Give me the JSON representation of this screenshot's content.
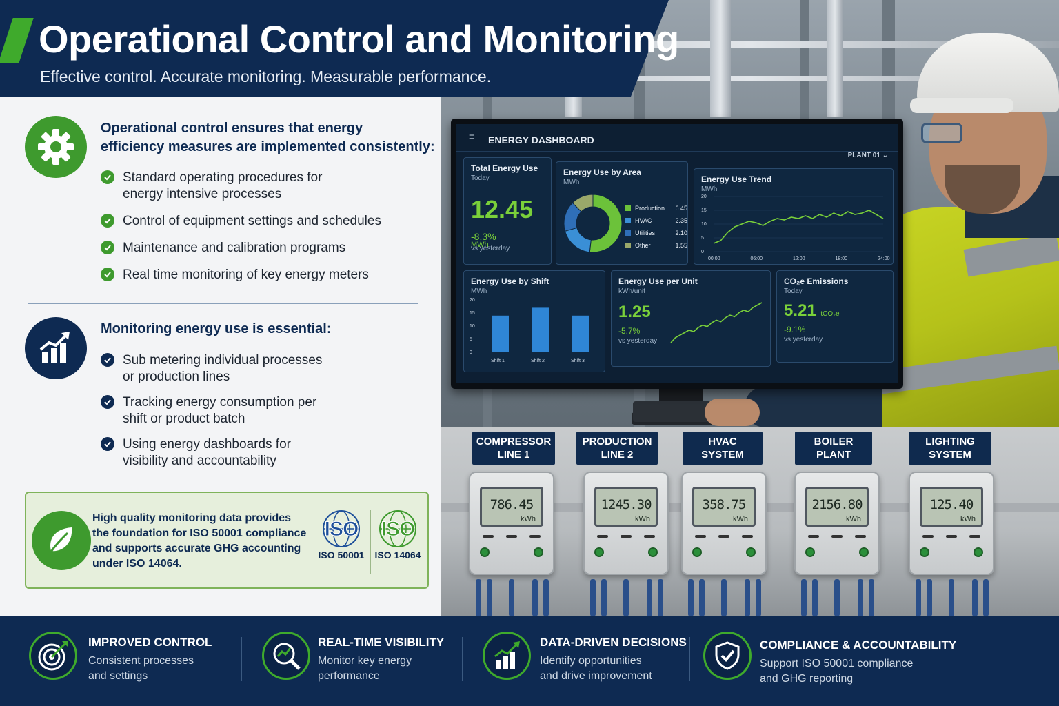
{
  "header": {
    "title": "Operational Control and Monitoring",
    "subtitle": "Effective control. Accurate monitoring. Measurable performance."
  },
  "operational": {
    "icon": "gear-icon",
    "heading_line1": "Operational control ensures that energy",
    "heading_line2": "efficiency measures are implemented consistently:",
    "bullets": [
      {
        "line1": "Standard operating procedures for",
        "line2": "energy intensive processes"
      },
      {
        "line1": "Control of equipment settings and schedules",
        "line2": ""
      },
      {
        "line1": "Maintenance and calibration programs",
        "line2": ""
      },
      {
        "line1": "Real time monitoring of key energy meters",
        "line2": ""
      }
    ]
  },
  "monitoring": {
    "icon": "growth-chart-icon",
    "heading": "Monitoring energy use is essential:",
    "bullets": [
      {
        "line1": "Sub metering individual processes",
        "line2": "or production lines"
      },
      {
        "line1": "Tracking energy consumption per",
        "line2": "shift or product batch"
      },
      {
        "line1": "Using energy dashboards for",
        "line2": "visibility and accountability"
      }
    ]
  },
  "iso_box": {
    "text_line1": "High quality monitoring data provides",
    "text_line2": "the foundation for ISO 50001 compliance",
    "text_line3": "and supports accurate GHG accounting",
    "text_line4": "under ISO 14064.",
    "badges": [
      {
        "word": "ISO",
        "caption": "ISO 50001",
        "color": "#1d4f9a"
      },
      {
        "word": "ISO",
        "caption": "ISO 14064",
        "color": "#3e9a2e"
      }
    ]
  },
  "dashboard": {
    "title": "ENERGY DASHBOARD",
    "menu_icon": "≡",
    "plant": "PLANT 01 ⌄",
    "total": {
      "title": "Total Energy Use",
      "sub": "Today",
      "value": "12.45",
      "unit": "MWh",
      "delta": "-8.3%",
      "vs": "vs yesterday"
    },
    "by_area": {
      "title": "Energy Use by Area",
      "sub": "MWh",
      "items": [
        {
          "name": "Production",
          "value": "6.45",
          "color": "#6cc23a"
        },
        {
          "name": "HVAC",
          "value": "2.35",
          "color": "#3a8fd6"
        },
        {
          "name": "Utilities",
          "value": "2.10",
          "color": "#2f6fb8"
        },
        {
          "name": "Other",
          "value": "1.55",
          "color": "#9aa86a"
        }
      ]
    },
    "trend": {
      "title": "Energy Use Trend",
      "sub": "MWh",
      "y_ticks": [
        "20",
        "15",
        "10",
        "5",
        "0"
      ],
      "x_ticks": [
        "00:00",
        "06:00",
        "12:00",
        "18:00",
        "24:00"
      ]
    },
    "by_shift": {
      "title": "Energy Use by Shift",
      "sub": "MWh",
      "y_ticks": [
        "20",
        "15",
        "10",
        "5",
        "0"
      ],
      "categories": [
        "Shift 1",
        "Shift 2",
        "Shift 3"
      ]
    },
    "per_unit": {
      "title": "Energy Use per Unit",
      "sub": "kWh/unit",
      "value": "1.25",
      "delta": "-5.7%",
      "vs": "vs yesterday"
    },
    "co2": {
      "title": "CO₂e Emissions",
      "sub": "Today",
      "value": "5.21",
      "unit": "tCO₂e",
      "delta": "-9.1%",
      "vs": "vs yesterday"
    }
  },
  "meters": [
    {
      "label_line1": "COMPRESSOR",
      "label_line2": "LINE 1",
      "reading": "786.45",
      "unit": "kWh"
    },
    {
      "label_line1": "PRODUCTION",
      "label_line2": "LINE 2",
      "reading": "1245.30",
      "unit": "kWh"
    },
    {
      "label_line1": "HVAC",
      "label_line2": "SYSTEM",
      "reading": "358.75",
      "unit": "kWh"
    },
    {
      "label_line1": "BOILER",
      "label_line2": "PLANT",
      "reading": "2156.80",
      "unit": "kWh"
    },
    {
      "label_line1": "LIGHTING",
      "label_line2": "SYSTEM",
      "reading": "125.40",
      "unit": "kWh"
    }
  ],
  "footer": [
    {
      "icon": "target-icon",
      "title": "IMPROVED CONTROL",
      "desc_line1": "Consistent processes",
      "desc_line2": "and settings"
    },
    {
      "icon": "magnifier-chart-icon",
      "title": "REAL-TIME VISIBILITY",
      "desc_line1": "Monitor key energy",
      "desc_line2": "performance"
    },
    {
      "icon": "bar-growth-icon",
      "title": "DATA-DRIVEN DECISIONS",
      "desc_line1": "Identify opportunities",
      "desc_line2": "and drive improvement"
    },
    {
      "icon": "shield-check-icon",
      "title": "COMPLIANCE & ACCOUNTABILITY",
      "desc_line1": "Support ISO 50001 compliance",
      "desc_line2": "and GHG reporting"
    }
  ],
  "colors": {
    "navy": "#0e2a52",
    "green": "#3faa2c",
    "lime": "#7ad03a"
  },
  "chart_data": [
    {
      "type": "pie",
      "title": "Energy Use by Area",
      "categories": [
        "Production",
        "HVAC",
        "Utilities",
        "Other"
      ],
      "values": [
        6.45,
        2.35,
        2.1,
        1.55
      ]
    },
    {
      "type": "line",
      "title": "Energy Use Trend",
      "ylabel": "MWh",
      "ylim": [
        0,
        20
      ],
      "x": [
        "00:00",
        "01:00",
        "02:00",
        "03:00",
        "04:00",
        "05:00",
        "06:00",
        "07:00",
        "08:00",
        "09:00",
        "10:00",
        "11:00",
        "12:00",
        "13:00",
        "14:00",
        "15:00",
        "16:00",
        "17:00",
        "18:00",
        "19:00",
        "20:00",
        "21:00",
        "22:00",
        "23:00",
        "24:00"
      ],
      "values": [
        3,
        4,
        7,
        9,
        10,
        11,
        10.5,
        9.5,
        11,
        12,
        11.5,
        12.5,
        12,
        13,
        12,
        13.5,
        12.5,
        14,
        13,
        14.5,
        13.5,
        14,
        15,
        13.5,
        12
      ]
    },
    {
      "type": "bar",
      "title": "Energy Use by Shift",
      "ylabel": "MWh",
      "ylim": [
        0,
        20
      ],
      "categories": [
        "Shift 1",
        "Shift 2",
        "Shift 3"
      ],
      "values": [
        14,
        17,
        14
      ]
    },
    {
      "type": "line",
      "title": "Energy Use per Unit",
      "values": [
        1,
        2,
        2.5,
        3,
        3.5,
        3.2,
        4,
        4.5,
        4.2,
        5,
        5.5,
        5.2,
        6,
        6.5,
        6.2,
        7,
        7.5,
        7.2,
        8,
        8.5,
        9
      ]
    }
  ]
}
